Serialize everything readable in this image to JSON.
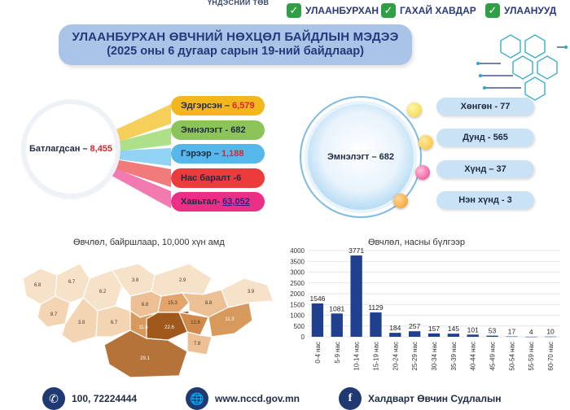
{
  "header": {
    "top_center": "ҮНДЭСНИЙ ТӨВ",
    "tags": [
      "УЛААНБУРХАН",
      "ГАХАЙ ХАВДАР",
      "УЛААНУУД"
    ],
    "title_line1": "УЛААНБУРХАН ӨВЧНИЙ НӨХЦӨЛ БАЙДЛЫН МЭДЭЭ",
    "title_line2": "(2025 оны 6 дугаар сарын 19-ний байдлаар)"
  },
  "summary": {
    "confirmed_label": "Батлагдсан –",
    "confirmed_value": "8,455",
    "items": [
      {
        "label": "Эдгэрсэн –",
        "value": "6,579",
        "color": "#f2b71f"
      },
      {
        "label": "Эмнэлэгт - 682",
        "value": "",
        "color": "#8cc45a"
      },
      {
        "label": "Гэрээр –",
        "value": "1,188",
        "color": "#56b8ea"
      },
      {
        "label": "Нас баралт -6",
        "value": "",
        "color": "#ec3b3b"
      },
      {
        "label": "Хавьтал-",
        "value": "63,052",
        "color": "#ec2f86"
      }
    ]
  },
  "severity": {
    "center_label": "Эмнэлэгт – 682",
    "items": [
      {
        "label": "Хөнгөн - 77",
        "dot_color": "#f2d43a"
      },
      {
        "label": "Дунд - 565",
        "dot_color": "#f2c234"
      },
      {
        "label": "Хүнд – 37",
        "dot_color": "#e83f8f"
      },
      {
        "label": "Нэн хүнд - 3",
        "dot_color": "#f29a1c"
      }
    ]
  },
  "map": {
    "title": "Өвчлөл, байршлаар, 10,000 хүн амд",
    "regions": [
      {
        "label": "6.8",
        "shade": "#f6e1c9"
      },
      {
        "label": "8.7",
        "shade": "#f3d4b3"
      },
      {
        "label": "6.7",
        "shade": "#f6e1c9"
      },
      {
        "label": "6.2",
        "shade": "#f6e1c9"
      },
      {
        "label": "3.8",
        "shade": "#f6e1c9"
      },
      {
        "label": "3.8",
        "shade": "#f3d4b3"
      },
      {
        "label": "6.7",
        "shade": "#f3d4b3"
      },
      {
        "label": "6.8",
        "shade": "#ecc094"
      },
      {
        "label": "15.3",
        "shade": "#e4a56c"
      },
      {
        "label": "2.9",
        "shade": "#f6e1c9"
      },
      {
        "label": "8.8",
        "shade": "#ecc094"
      },
      {
        "label": "11.6",
        "shade": "#d89a5c"
      },
      {
        "label": "22.6",
        "shade": "#a0581c"
      },
      {
        "label": "12.6",
        "shade": "#cf8a4c"
      },
      {
        "label": "11.3",
        "shade": "#d89a5c"
      },
      {
        "label": "7.8",
        "shade": "#ecc094"
      },
      {
        "label": "29.1",
        "shade": "#b5733a"
      },
      {
        "label": "3.9",
        "shade": "#f6e1c9"
      }
    ]
  },
  "chart_data": {
    "type": "bar",
    "title": "Өвчлөл, насны бүлгээр",
    "categories": [
      "0-4 нас",
      "5-9 нас",
      "10-14 нас",
      "15-19 нас",
      "20-24 нас",
      "25-29 нас",
      "30-34 нас",
      "35-39 нас",
      "40-44 нас",
      "45-49 нас",
      "50-54 нас",
      "55-59 нас",
      "60-70 нас"
    ],
    "values": [
      1546,
      1081,
      3771,
      1129,
      184,
      257,
      157,
      145,
      101,
      53,
      17,
      4,
      10
    ],
    "ylim": [
      0,
      4000
    ],
    "yticks": [
      "0",
      "500",
      "1000",
      "1500",
      "2000",
      "2500",
      "3000",
      "3500",
      "4000"
    ],
    "bar_color": "#1f3f8f",
    "grid": true
  },
  "footer": {
    "phone": "100, 72224444",
    "website": "www.nccd.gov.mn",
    "facebook": "Халдварт Өвчин Судлалын"
  }
}
